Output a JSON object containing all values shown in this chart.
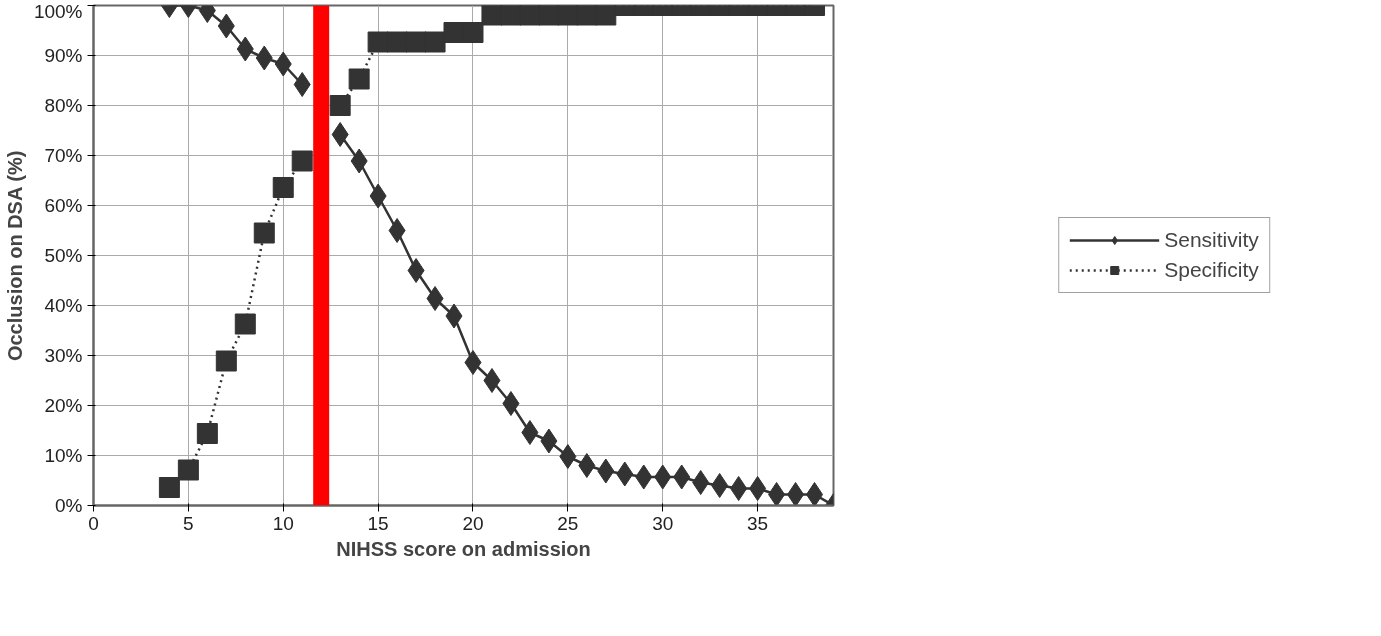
{
  "chart_data": {
    "type": "line",
    "xlabel": "NIHSS score on admission",
    "ylabel": "Occlusion on DSA (%)",
    "xlim": [
      0,
      39
    ],
    "xticks": [
      0,
      5,
      10,
      15,
      20,
      25,
      30,
      35
    ],
    "ylim": [
      0,
      100
    ],
    "yticks": [
      {
        "value": 0,
        "label": "0%"
      },
      {
        "value": 10,
        "label": "10%"
      },
      {
        "value": 20,
        "label": "20%"
      },
      {
        "value": 30,
        "label": "30%"
      },
      {
        "value": 40,
        "label": "40%"
      },
      {
        "value": 50,
        "label": "50%"
      },
      {
        "value": 60,
        "label": "60%"
      },
      {
        "value": 70,
        "label": "70%"
      },
      {
        "value": 80,
        "label": "80%"
      },
      {
        "value": 90,
        "label": "90%"
      },
      {
        "value": 100,
        "label": "100%"
      }
    ],
    "grid": true,
    "legend": "right",
    "series": [
      {
        "name": "Sensitivity",
        "color": "#333333",
        "marker": "diamond",
        "line_style": "solid",
        "x": [
          4,
          5,
          6,
          7,
          8,
          9,
          10,
          11,
          12,
          13,
          14,
          15,
          16,
          17,
          18,
          19,
          20,
          21,
          22,
          23,
          24,
          25,
          26,
          27,
          28,
          29,
          30,
          31,
          32,
          33,
          34,
          35,
          36,
          37,
          38,
          39
        ],
        "values": [
          100,
          100,
          99,
          95.9,
          91.3,
          89.5,
          88.3,
          84.2,
          null,
          74.2,
          68.9,
          61.9,
          55,
          47,
          41.4,
          37.9,
          28.6,
          25,
          20.4,
          14.6,
          12.9,
          9.8,
          8,
          6.9,
          6.3,
          5.7,
          5.7,
          5.7,
          4.6,
          4,
          3.4,
          3.4,
          2.2,
          2.2,
          2.2,
          0
        ]
      },
      {
        "name": "Specificity",
        "color": "#333333",
        "marker": "square",
        "line_style": "dotted",
        "x": [
          4,
          5,
          6,
          7,
          8,
          9,
          10,
          11,
          12,
          13,
          14,
          15,
          16,
          17,
          18,
          19,
          20,
          21,
          22,
          23,
          24,
          25,
          26,
          27,
          28,
          29,
          30,
          31,
          32,
          33,
          34,
          35,
          36,
          37,
          38
        ],
        "values": [
          3.6,
          7.1,
          14.4,
          28.9,
          36.3,
          54.5,
          63.6,
          68.9,
          null,
          80,
          85.3,
          92.7,
          92.7,
          92.7,
          92.7,
          94.6,
          94.6,
          98.1,
          98.1,
          98.1,
          98.1,
          98.1,
          98.1,
          98.1,
          100,
          100,
          100,
          100,
          100,
          100,
          100,
          100,
          100,
          100,
          100
        ]
      }
    ],
    "ref_lines": [
      {
        "axis": "x",
        "value": 12,
        "color": "#ff0000"
      }
    ]
  }
}
